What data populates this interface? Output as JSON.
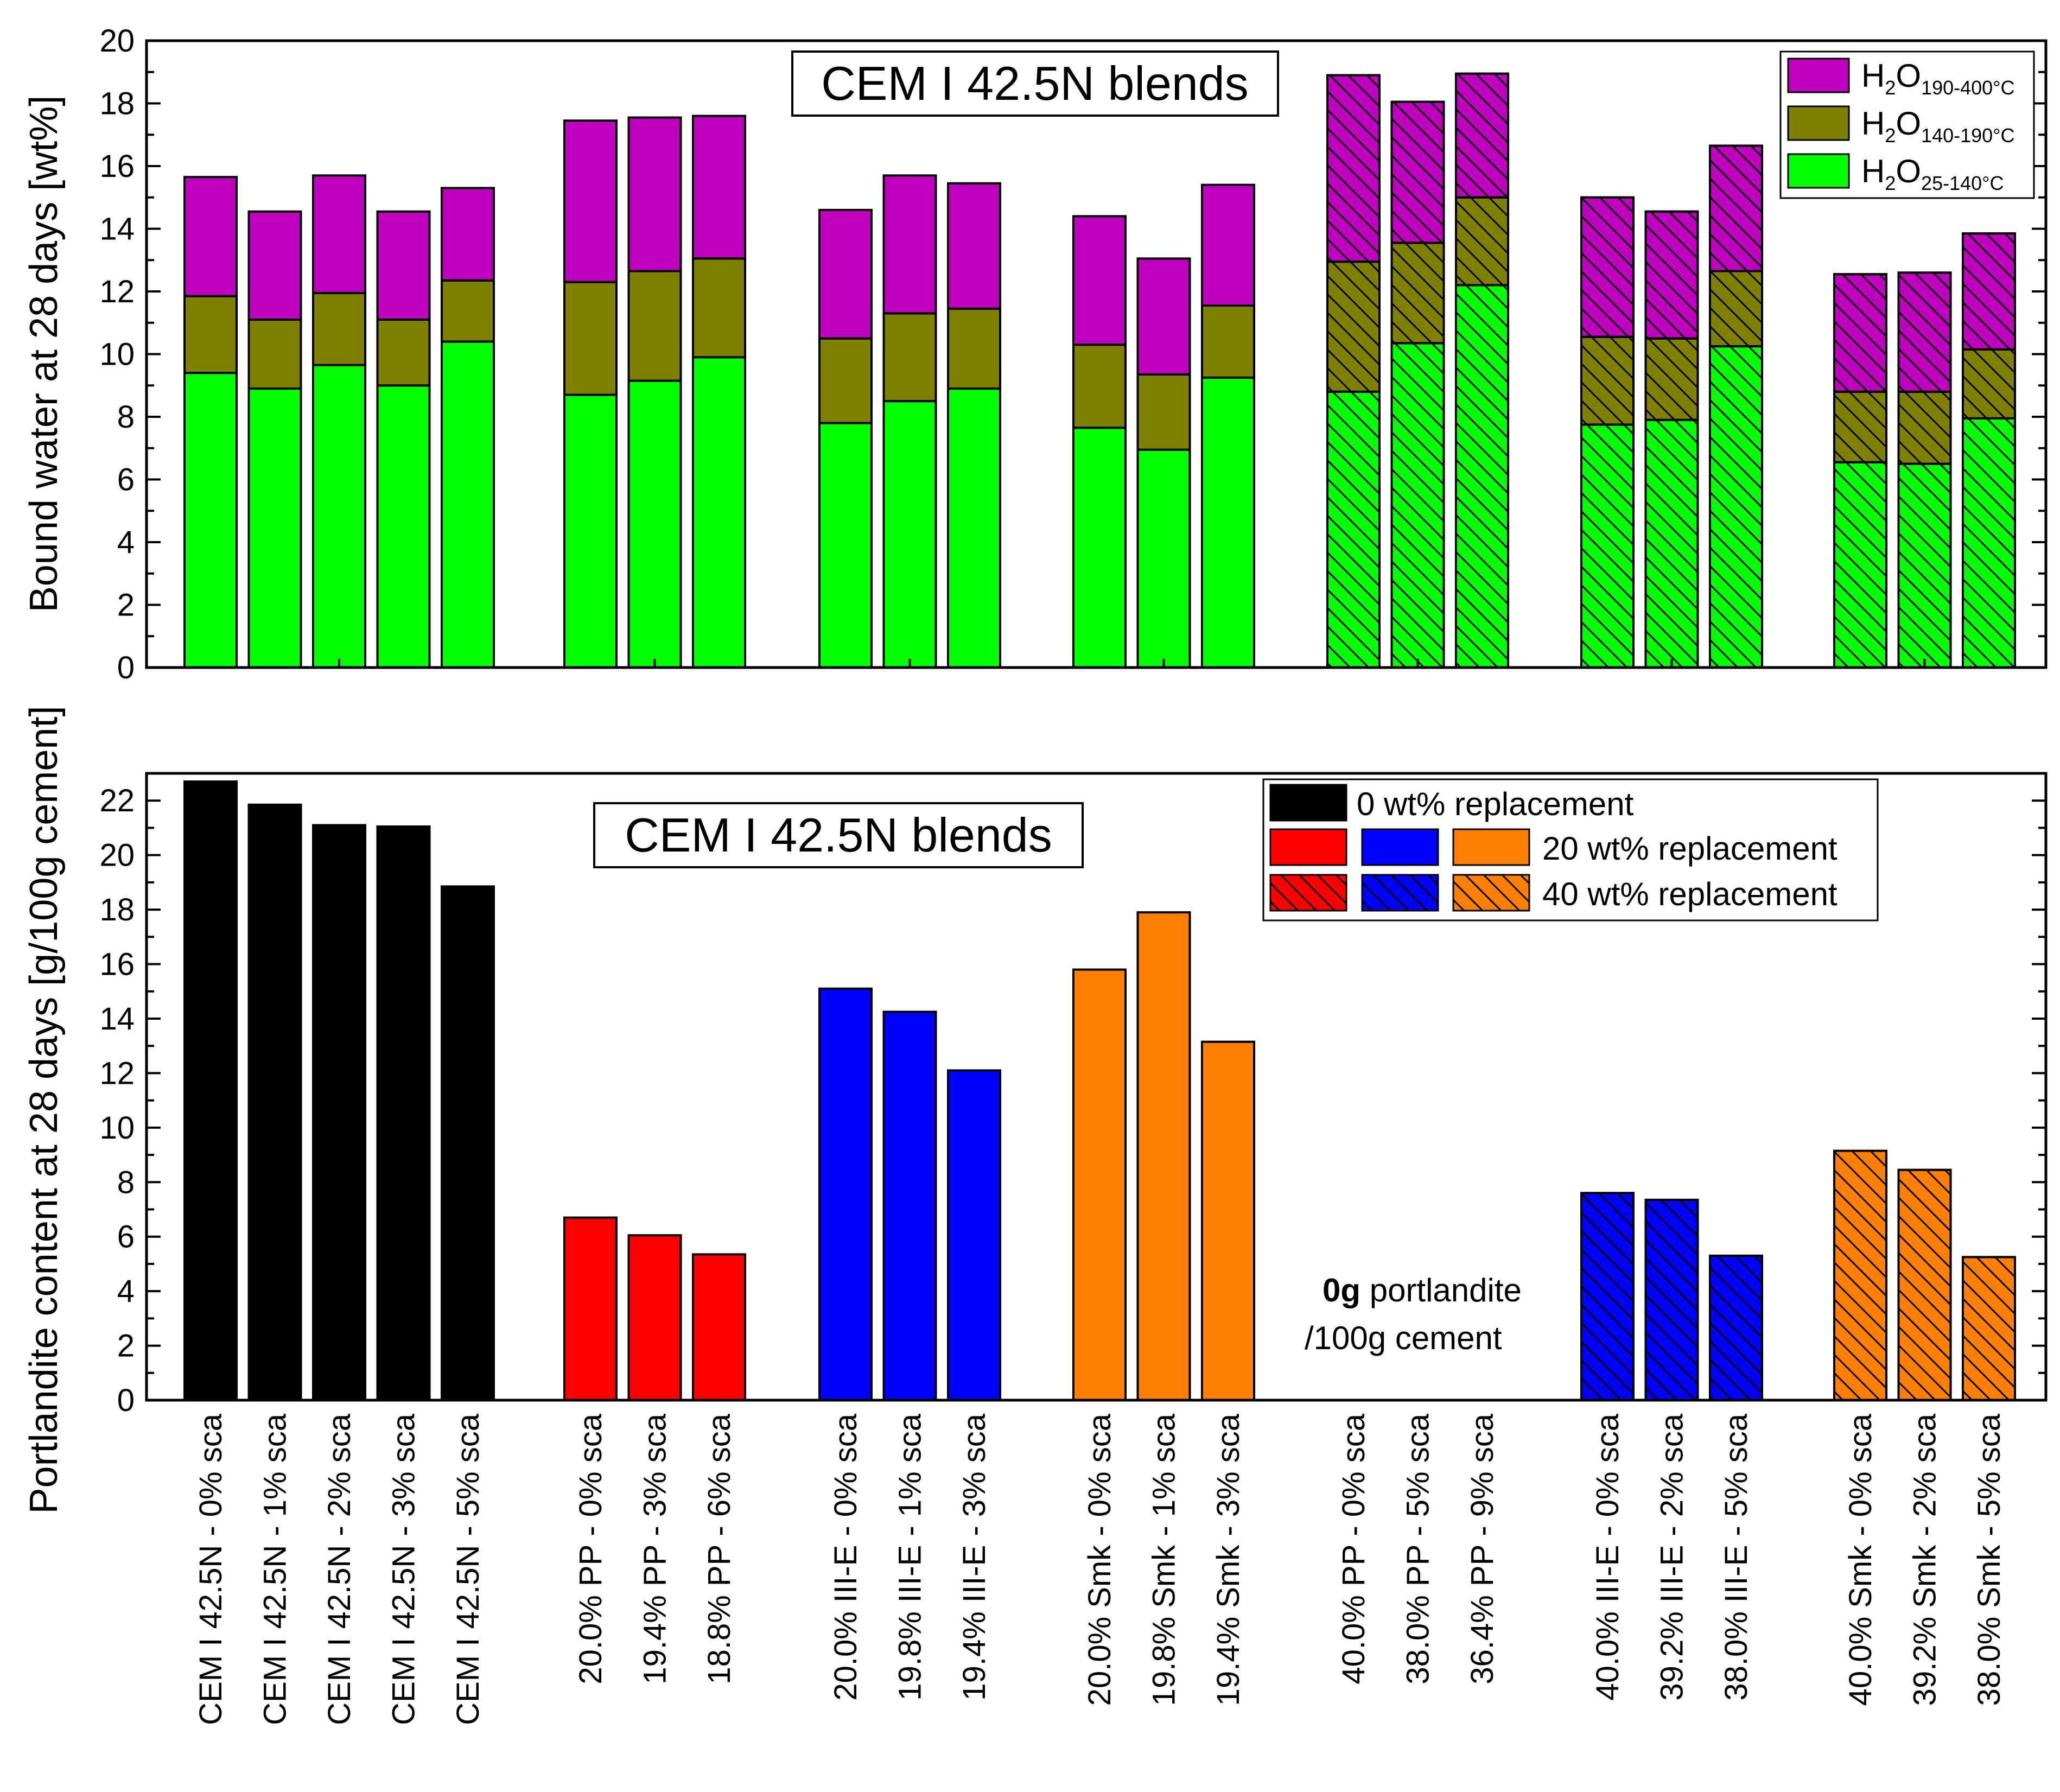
{
  "categories": [
    "CEM I 42.5N - 0% sca",
    "CEM I 42.5N - 1% sca",
    "CEM I 42.5N - 2% sca",
    "CEM I 42.5N - 3% sca",
    "CEM I 42.5N - 5% sca",
    "20.0% PP - 0% sca",
    "19.4% PP - 3% sca",
    "18.8% PP - 6% sca",
    "20.0% III-E - 0% sca",
    "19.8% III-E - 1% sca",
    "19.4% III-E - 3% sca",
    "20.0% Smk - 0% sca",
    "19.8% Smk - 1% sca",
    "19.4% Smk - 3% sca",
    "40.0% PP - 0% sca",
    "38.0% PP - 5% sca",
    "36.4% PP - 9% sca",
    "40.0% III-E - 0% sca",
    "39.2% III-E - 2% sca",
    "38.0% III-E - 5% sca",
    "40.0% Smk - 0% sca",
    "39.2% Smk - 2% sca",
    "38.0% Smk - 5% sca"
  ],
  "colors": {
    "h2o_low": "#00ff00",
    "h2o_mid": "#808000",
    "h2o_high": "#bf00bf",
    "cem": "#000000",
    "pp": "#ff0000",
    "iiie": "#0000ff",
    "smk": "#ff8000"
  },
  "chart_data": [
    {
      "type": "bar",
      "stacked": true,
      "title": "CEM I 42.5N blends",
      "ylabel": "Bound water at 28 days [wt%]",
      "xlabel": "",
      "ylim": [
        0,
        20
      ],
      "yticks": [
        "0",
        "2",
        "4",
        "6",
        "8",
        "10",
        "12",
        "14",
        "16",
        "18",
        "20"
      ],
      "series": [
        {
          "name": "H2O 25-140°C",
          "label_main": "H",
          "label_sub1": "2",
          "label_mid": "O",
          "label_sub2": "25-140°C",
          "values": [
            9.4,
            8.9,
            9.65,
            9.0,
            10.4,
            8.7,
            9.15,
            9.9,
            7.8,
            8.5,
            8.9,
            7.65,
            6.95,
            9.25,
            8.8,
            10.35,
            12.2,
            7.75,
            7.9,
            10.25,
            6.55,
            6.5,
            7.95
          ]
        },
        {
          "name": "H2O 140-190°C",
          "label_main": "H",
          "label_sub1": "2",
          "label_mid": "O",
          "label_sub2": "140-190°C",
          "values": [
            2.45,
            2.2,
            2.3,
            2.1,
            1.95,
            3.6,
            3.5,
            3.15,
            2.7,
            2.8,
            2.55,
            2.65,
            2.4,
            2.3,
            4.15,
            3.2,
            2.8,
            2.8,
            2.6,
            2.4,
            2.25,
            2.3,
            2.2
          ]
        },
        {
          "name": "H2O 190-400°C",
          "label_main": "H",
          "label_sub1": "2",
          "label_mid": "O",
          "label_sub2": "190-400°C",
          "values": [
            3.8,
            3.45,
            3.75,
            3.45,
            2.95,
            5.15,
            4.9,
            4.55,
            4.1,
            4.4,
            4.0,
            4.1,
            3.7,
            3.85,
            5.95,
            4.5,
            3.95,
            4.45,
            4.05,
            4.0,
            3.75,
            3.8,
            3.7
          ]
        }
      ]
    },
    {
      "type": "bar",
      "title": "CEM I 42.5N blends",
      "ylabel": "Portlandite content at 28 days [g/100g cement]",
      "xlabel": "",
      "ylim": [
        0,
        23
      ],
      "yticks": [
        "0",
        "2",
        "4",
        "6",
        "8",
        "10",
        "12",
        "14",
        "16",
        "18",
        "20",
        "22"
      ],
      "series": [
        {
          "name": "Portlandite",
          "values": [
            22.7,
            21.85,
            21.1,
            21.05,
            18.85,
            6.7,
            6.05,
            5.35,
            15.1,
            14.25,
            12.1,
            15.8,
            17.9,
            13.15,
            0,
            0,
            0,
            7.6,
            7.35,
            5.3,
            9.15,
            8.45,
            5.25
          ]
        }
      ],
      "legend": [
        {
          "label": "0 wt% replacement"
        },
        {
          "label": "20 wt% replacement"
        },
        {
          "label": "40 wt% replacement"
        }
      ],
      "annotation": {
        "bold": "0g",
        "line1_rest": " portlandite",
        "line2": "/100g cement"
      }
    }
  ]
}
